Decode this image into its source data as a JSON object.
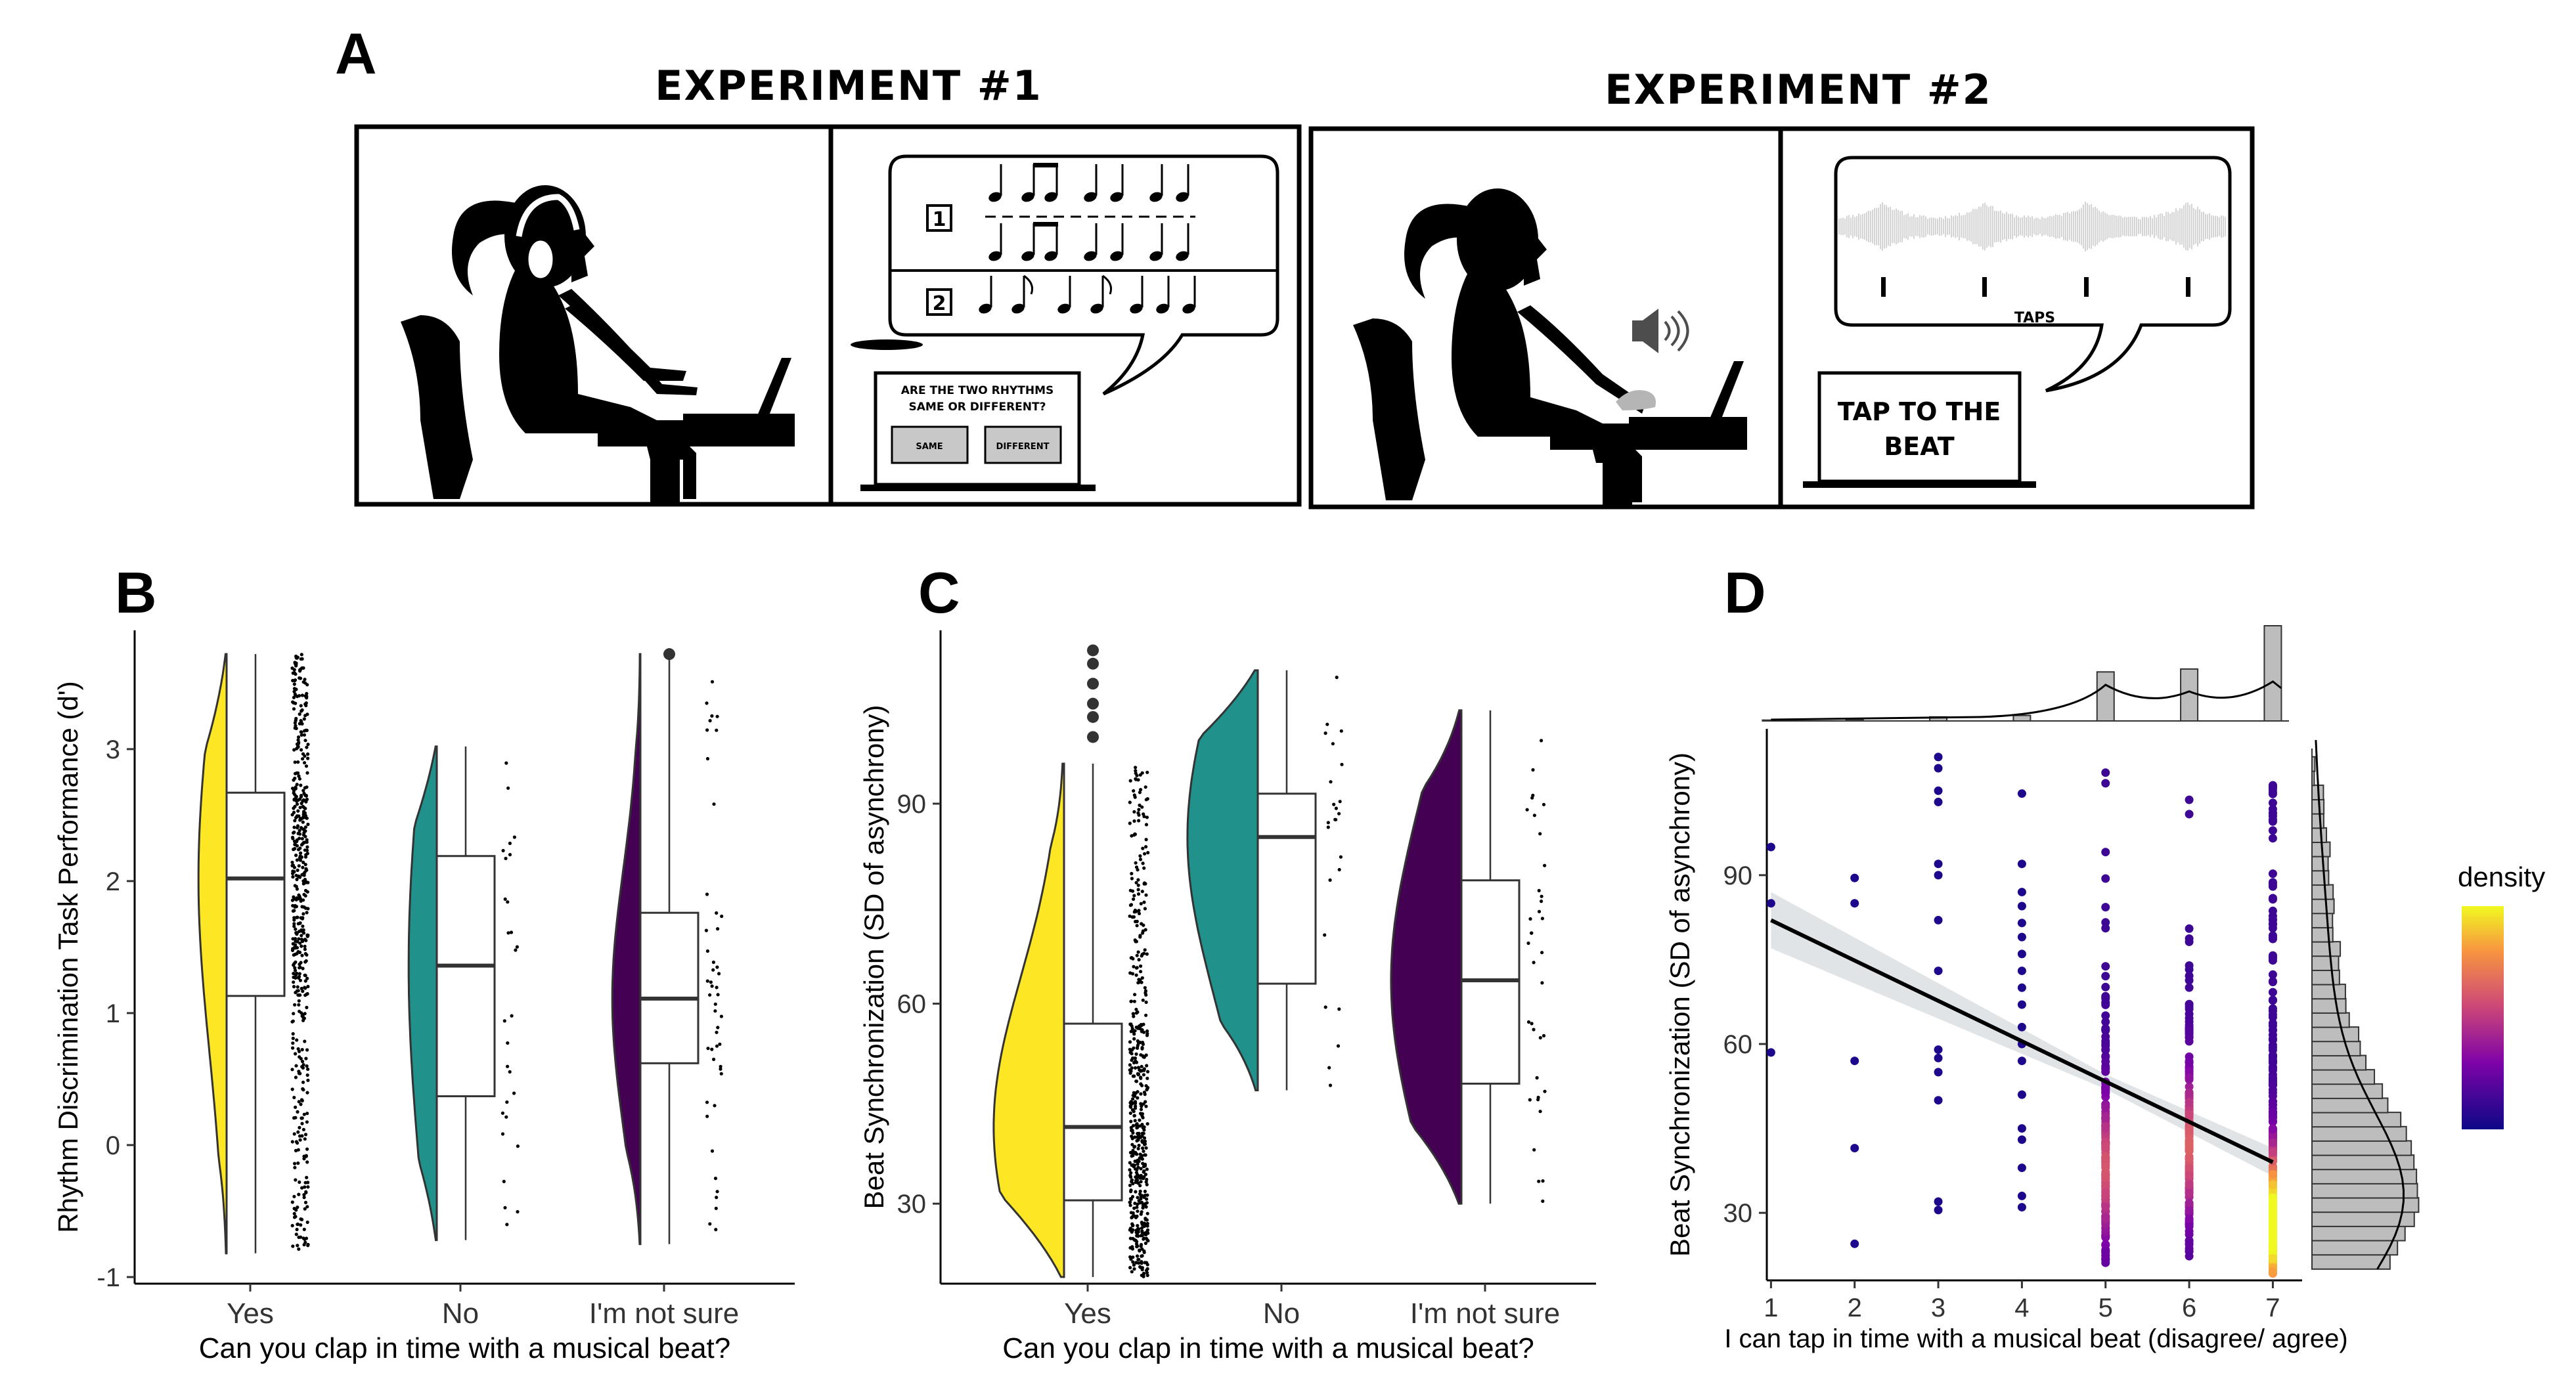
{
  "panels": {
    "a": {
      "letter": "A"
    },
    "b": {
      "letter": "B"
    },
    "c": {
      "letter": "C"
    },
    "d": {
      "letter": "D"
    }
  },
  "experiment1": {
    "title": "EXPERIMENT #1",
    "rhythm_one": "1",
    "rhythm_two": "2",
    "question_line1": "ARE THE TWO RHYTHMS",
    "question_line2": "SAME OR DIFFERENT?",
    "same_button": "SAME",
    "different_button": "DIFFERENT"
  },
  "experiment2": {
    "title": "EXPERIMENT #2",
    "taps_label": "TAPS",
    "tap_line1": "TAP TO THE",
    "tap_line2": "BEAT"
  },
  "colors": {
    "yes": "#FDE725",
    "no": "#21918C",
    "not_sure": "#440154",
    "density_low": "#0D0887",
    "density_mid": "#CC4778",
    "density_high": "#F0F921"
  },
  "chart_data": [
    {
      "panel": "B",
      "type": "raincloud",
      "xlabel": "Can you clap in time with a musical beat?",
      "ylabel": "Rhythm Discrimination Task Performance (d')",
      "categories": [
        "Yes",
        "No",
        "I'm not sure"
      ],
      "ylim": [
        -1.05,
        3.9
      ],
      "yticks": [
        -1,
        0,
        1,
        2,
        3
      ],
      "boxes": [
        {
          "category": "Yes",
          "min": -0.82,
          "q1": 1.13,
          "median": 2.02,
          "q3": 2.67,
          "max": 3.72
        },
        {
          "category": "No",
          "min": -0.72,
          "q1": 0.37,
          "median": 1.36,
          "q3": 2.19,
          "max": 3.02
        },
        {
          "category": "I'm not sure",
          "min": -0.75,
          "q1": 0.62,
          "median": 1.11,
          "q3": 1.76,
          "max": 3.72
        }
      ],
      "outliers": [
        {
          "category": "I'm not sure",
          "value": 3.72
        }
      ],
      "point_counts": [
        520,
        28,
        48
      ]
    },
    {
      "panel": "C",
      "type": "raincloud",
      "xlabel": "Can you clap in time with a musical beat?",
      "ylabel": "Beat Synchronization (SD of asynchrony)",
      "categories": [
        "Yes",
        "No",
        "I'm not sure"
      ],
      "ylim": [
        18,
        116
      ],
      "yticks": [
        30,
        60,
        90
      ],
      "boxes": [
        {
          "category": "Yes",
          "min": 19,
          "q1": 30.5,
          "median": 41.5,
          "q3": 57,
          "max": 96
        },
        {
          "category": "No",
          "min": 47,
          "q1": 63,
          "median": 85,
          "q3": 91.5,
          "max": 110
        },
        {
          "category": "I'm not sure",
          "min": 30,
          "q1": 48,
          "median": 63.5,
          "q3": 78.5,
          "max": 104
        }
      ],
      "outliers": [
        {
          "category": "Yes",
          "value": 100
        },
        {
          "category": "Yes",
          "value": 103
        },
        {
          "category": "Yes",
          "value": 105
        },
        {
          "category": "Yes",
          "value": 108
        },
        {
          "category": "Yes",
          "value": 111
        },
        {
          "category": "Yes",
          "value": 113
        }
      ],
      "point_counts": [
        520,
        24,
        36
      ]
    },
    {
      "panel": "D",
      "type": "scatter",
      "xlabel": "I can tap in time with a musical beat (disagree/ agree)",
      "ylabel": "Beat Synchronization (SD of asynchrony)",
      "xticks": [
        1,
        2,
        3,
        4,
        5,
        6,
        7
      ],
      "yticks": [
        30,
        60,
        90
      ],
      "xlim": [
        0.95,
        7.35
      ],
      "ylim": [
        18,
        116
      ],
      "regression": {
        "x": [
          1,
          7
        ],
        "y": [
          82,
          39
        ]
      },
      "legend_title": "density",
      "legend_position": "right",
      "points": [
        {
          "x": 1,
          "y": [
            95,
            85,
            58.5
          ]
        },
        {
          "x": 2,
          "y": [
            89.5,
            85,
            57,
            41.5,
            24.5
          ]
        },
        {
          "x": 3,
          "y": [
            111,
            109,
            105,
            103,
            92,
            90,
            82,
            73,
            59,
            57.5,
            55,
            50,
            32,
            30.5
          ]
        },
        {
          "x": 4,
          "y": [
            104.5,
            92,
            87,
            84.5,
            81.5,
            79,
            76,
            73,
            70,
            67,
            63,
            60,
            57,
            51,
            45,
            43,
            38,
            33,
            31
          ]
        },
        {
          "x": 5,
          "y_range": [
            21,
            114
          ],
          "n": 170,
          "peak": 38
        },
        {
          "x": 6,
          "y_range": [
            22,
            106
          ],
          "n": 180,
          "peak": 42
        },
        {
          "x": 7,
          "y_range": [
            19,
            107
          ],
          "n": 330,
          "peak": 28
        }
      ],
      "top_histogram": {
        "x": [
          1,
          2,
          3,
          4,
          5,
          6,
          7
        ],
        "counts": [
          3,
          5,
          14,
          19,
          170,
          180,
          330
        ]
      }
    }
  ]
}
